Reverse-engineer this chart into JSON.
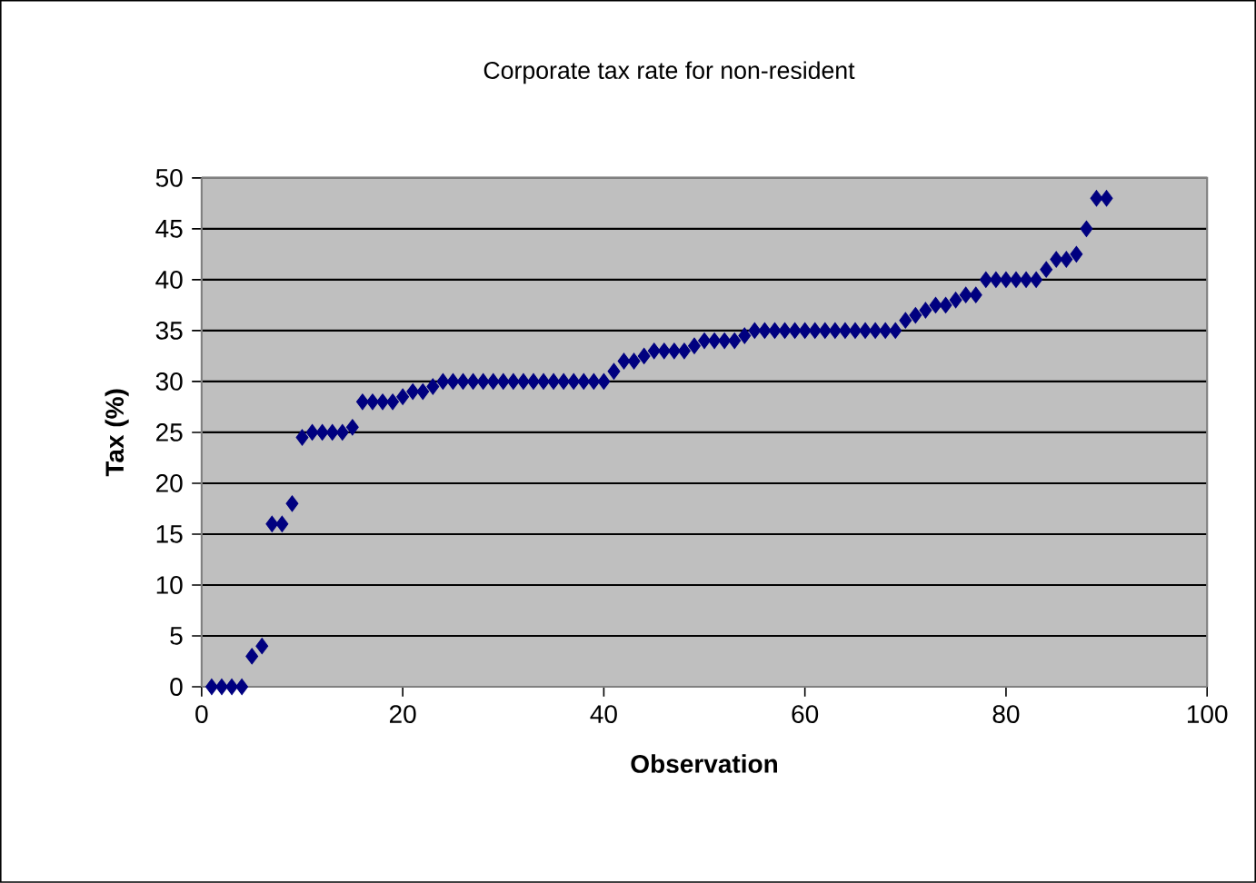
{
  "chart_data": {
    "type": "scatter",
    "title": "Corporate tax rate for non-resident",
    "xlabel": "Observation",
    "ylabel": "Tax (%)",
    "x": [
      1,
      2,
      3,
      4,
      5,
      6,
      7,
      8,
      9,
      10,
      11,
      12,
      13,
      14,
      15,
      16,
      17,
      18,
      19,
      20,
      21,
      22,
      23,
      24,
      25,
      26,
      27,
      28,
      29,
      30,
      31,
      32,
      33,
      34,
      35,
      36,
      37,
      38,
      39,
      40,
      41,
      42,
      43,
      44,
      45,
      46,
      47,
      48,
      49,
      50,
      51,
      52,
      53,
      54,
      55,
      56,
      57,
      58,
      59,
      60,
      61,
      62,
      63,
      64,
      65,
      66,
      67,
      68,
      69,
      70,
      71,
      72,
      73,
      74,
      75,
      76,
      77,
      78,
      79,
      80,
      81,
      82,
      83,
      84,
      85,
      86,
      87,
      88,
      89,
      90
    ],
    "values": [
      0,
      0,
      0,
      0,
      3,
      4,
      16,
      16,
      18,
      24.5,
      25,
      25,
      25,
      25,
      25.5,
      28,
      28,
      28,
      28,
      28.5,
      29,
      29,
      29.5,
      30,
      30,
      30,
      30,
      30,
      30,
      30,
      30,
      30,
      30,
      30,
      30,
      30,
      30,
      30,
      30,
      30,
      31,
      32,
      32,
      32.5,
      33,
      33,
      33,
      33,
      33.5,
      34,
      34,
      34,
      34,
      34.5,
      35,
      35,
      35,
      35,
      35,
      35,
      35,
      35,
      35,
      35,
      35,
      35,
      35,
      35,
      35,
      36,
      36.5,
      37,
      37.5,
      37.5,
      38,
      38.5,
      38.5,
      40,
      40,
      40,
      40,
      40,
      40,
      41,
      42,
      42,
      42.5,
      45,
      48,
      48
    ],
    "color": "#000080",
    "marker": "diamond",
    "grid": "y",
    "xlim": [
      0,
      100
    ],
    "xticks": [
      0,
      20,
      40,
      60,
      80,
      100
    ],
    "ylim": [
      0,
      50
    ],
    "yticks": [
      0,
      5,
      10,
      15,
      20,
      25,
      30,
      35,
      40,
      45,
      50
    ]
  }
}
